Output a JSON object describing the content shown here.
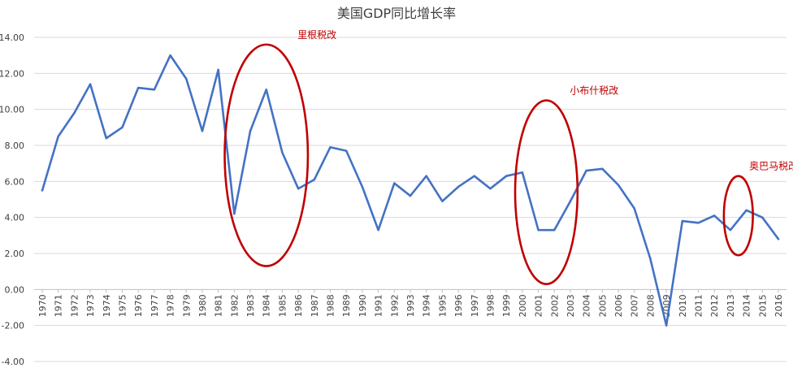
{
  "chart_data": {
    "type": "line",
    "title": "美国GDP同比增长率",
    "xlabel": "",
    "ylabel": "",
    "ylim": [
      -4,
      14
    ],
    "yticks": [
      "14.00",
      "12.00",
      "10.00",
      "8.00",
      "6.00",
      "4.00",
      "2.00",
      "0.00",
      "-2.00",
      "-4.00"
    ],
    "grid": true,
    "legend": "none",
    "categories": [
      "1970",
      "1971",
      "1972",
      "1973",
      "1974",
      "1975",
      "1976",
      "1977",
      "1978",
      "1979",
      "1980",
      "1981",
      "1982",
      "1983",
      "1984",
      "1985",
      "1986",
      "1987",
      "1988",
      "1989",
      "1990",
      "1991",
      "1992",
      "1993",
      "1994",
      "1995",
      "1996",
      "1997",
      "1998",
      "1999",
      "2000",
      "2001",
      "2002",
      "2003",
      "2004",
      "2005",
      "2006",
      "2007",
      "2008",
      "2009",
      "2010",
      "2011",
      "2012",
      "2013",
      "2014",
      "2015",
      "2016"
    ],
    "series": [
      {
        "color": "#4472c4",
        "values": [
          5.5,
          8.5,
          9.8,
          11.4,
          8.4,
          9.0,
          11.2,
          11.1,
          13.0,
          11.7,
          8.8,
          12.2,
          4.2,
          8.8,
          11.1,
          7.6,
          5.6,
          6.1,
          7.9,
          7.7,
          5.7,
          3.3,
          5.9,
          5.2,
          6.3,
          4.9,
          5.7,
          6.3,
          5.6,
          6.3,
          6.5,
          3.3,
          3.3,
          4.9,
          6.6,
          6.7,
          5.8,
          4.5,
          1.7,
          -2.0,
          3.8,
          3.7,
          4.1,
          3.3,
          4.4,
          4.0,
          2.8
        ]
      }
    ],
    "annotations": [
      {
        "text": "里根税改",
        "color": "#c00000",
        "x_from": "1982",
        "x_to": "1986",
        "y_from": 1.3,
        "y_to": 13.6
      },
      {
        "text": "小布什税改",
        "color": "#c00000",
        "x_from": "2000",
        "x_to": "2003",
        "y_from": 0.3,
        "y_to": 10.5
      },
      {
        "text": "奥巴马税改",
        "color": "#c00000",
        "x_from": "2013",
        "x_to": "2014",
        "y_from": 1.9,
        "y_to": 6.3
      }
    ]
  }
}
